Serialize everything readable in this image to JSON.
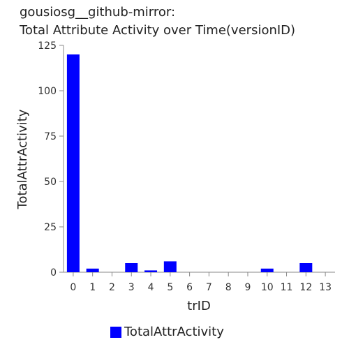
{
  "title_lines": [
    "gousiosg__github-mirror:",
    "Total Attribute Activity over Time(versionID)"
  ],
  "chart_data": {
    "type": "bar",
    "title": "gousiosg__github-mirror: Total Attribute Activity over Time(versionID)",
    "xlabel": "trID",
    "ylabel": "TotalAttrActivity",
    "categories": [
      "0",
      "1",
      "2",
      "3",
      "4",
      "5",
      "6",
      "7",
      "8",
      "9",
      "10",
      "11",
      "12",
      "13"
    ],
    "series": [
      {
        "name": "TotalAttrActivity",
        "values": [
          120,
          2,
          0,
          5,
          1,
          6,
          0,
          0,
          0,
          0,
          2,
          0,
          5,
          0
        ],
        "color": "#0000ff"
      }
    ],
    "ylim": [
      0,
      125
    ],
    "yticks": [
      0,
      25,
      50,
      75,
      100,
      125
    ],
    "legend": "bottom",
    "grid": false
  }
}
